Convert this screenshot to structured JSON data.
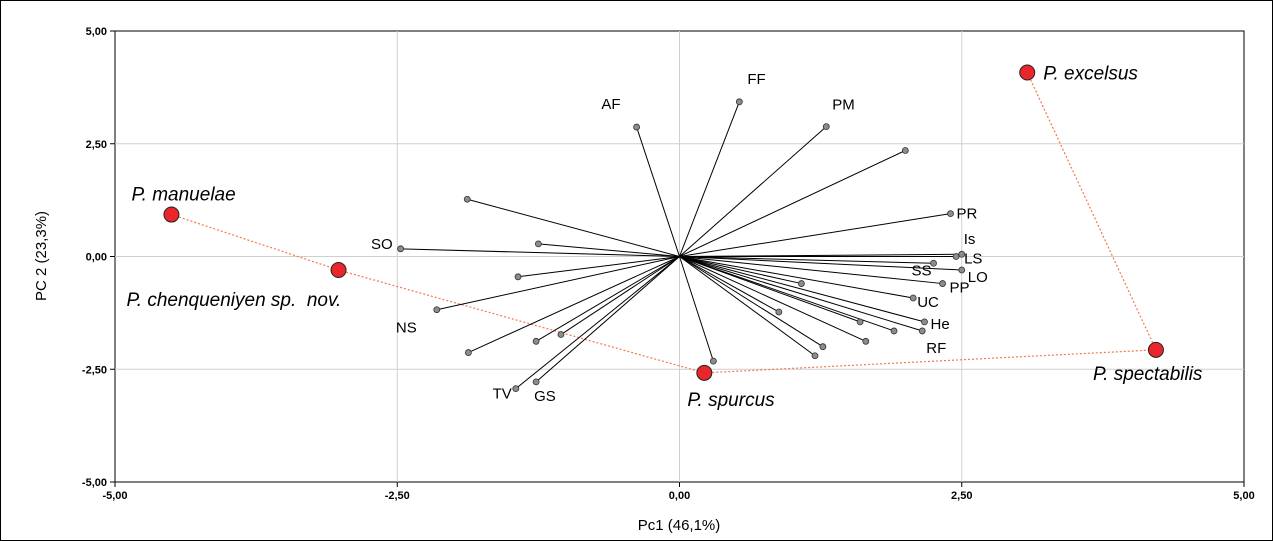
{
  "chart_data": {
    "type": "scatter",
    "subtype": "biplot",
    "xlabel": "Pc1 (46,1%)",
    "ylabel": "PC 2 (23,3%)",
    "xlim": [
      -5,
      5
    ],
    "ylim": [
      -5,
      5
    ],
    "x_ticks": [
      "-5,00",
      "-2,50",
      "0,00",
      "2,50",
      "5,00"
    ],
    "y_ticks": [
      "5,00",
      "2,50",
      "0,00",
      "-2,50",
      "-5,00"
    ],
    "grid": true,
    "colors": {
      "species_fill": "#e8262b",
      "variable_point": "#8c8c8c",
      "hull_line": "#f07a4a",
      "vector_line": "#000000"
    },
    "species": [
      {
        "label": "P. excelsus",
        "x": 3.08,
        "y": 4.08
      },
      {
        "label": "P. manuelae",
        "x": -4.5,
        "y": 0.93
      },
      {
        "label": "P. chenqueniyen sp.  nov.",
        "x": -3.02,
        "y": -0.3
      },
      {
        "label": "P. spurcus",
        "x": 0.22,
        "y": -2.58
      },
      {
        "label": "P. spectabilis",
        "x": 4.22,
        "y": -2.07
      }
    ],
    "hull_order": [
      "P. manuelae",
      "P. chenqueniyen sp.  nov.",
      "P. spurcus",
      "P. spectabilis",
      "P. excelsus"
    ],
    "variables": [
      {
        "label": "AF",
        "x": -0.38,
        "y": 2.87
      },
      {
        "label": "FF",
        "x": 0.53,
        "y": 3.43
      },
      {
        "label": "PM",
        "x": 1.3,
        "y": 2.88
      },
      {
        "label": "",
        "x": 2.0,
        "y": 2.35
      },
      {
        "label": "PR",
        "x": 2.4,
        "y": 0.95
      },
      {
        "label": "Is",
        "x": 2.5,
        "y": 0.05
      },
      {
        "label": "LS",
        "x": 2.45,
        "y": 0.0
      },
      {
        "label": "SS",
        "x": 2.25,
        "y": -0.15
      },
      {
        "label": "LO",
        "x": 2.5,
        "y": -0.3
      },
      {
        "label": "PP",
        "x": 2.33,
        "y": -0.6
      },
      {
        "label": "UC",
        "x": 2.07,
        "y": -0.92
      },
      {
        "label": "He",
        "x": 2.17,
        "y": -1.45
      },
      {
        "label": "RF",
        "x": 2.15,
        "y": -1.65
      },
      {
        "label": "",
        "x": 1.9,
        "y": -1.65
      },
      {
        "label": "",
        "x": 1.65,
        "y": -1.88
      },
      {
        "label": "",
        "x": 1.6,
        "y": -1.45
      },
      {
        "label": "",
        "x": 1.27,
        "y": -2.0
      },
      {
        "label": "",
        "x": 1.2,
        "y": -2.2
      },
      {
        "label": "",
        "x": 1.08,
        "y": -0.6
      },
      {
        "label": "",
        "x": 0.88,
        "y": -1.23
      },
      {
        "label": "",
        "x": 0.3,
        "y": -2.32
      },
      {
        "label": "SO",
        "x": -2.47,
        "y": 0.17
      },
      {
        "label": "",
        "x": -1.88,
        "y": 1.27
      },
      {
        "label": "",
        "x": -1.25,
        "y": 0.28
      },
      {
        "label": "",
        "x": -1.43,
        "y": -0.45
      },
      {
        "label": "NS",
        "x": -2.15,
        "y": -1.18
      },
      {
        "label": "",
        "x": -1.87,
        "y": -2.13
      },
      {
        "label": "",
        "x": -1.27,
        "y": -1.88
      },
      {
        "label": "",
        "x": -1.05,
        "y": -1.73
      },
      {
        "label": "TV",
        "x": -1.45,
        "y": -2.93
      },
      {
        "label": "GS",
        "x": -1.27,
        "y": -2.78
      }
    ]
  }
}
